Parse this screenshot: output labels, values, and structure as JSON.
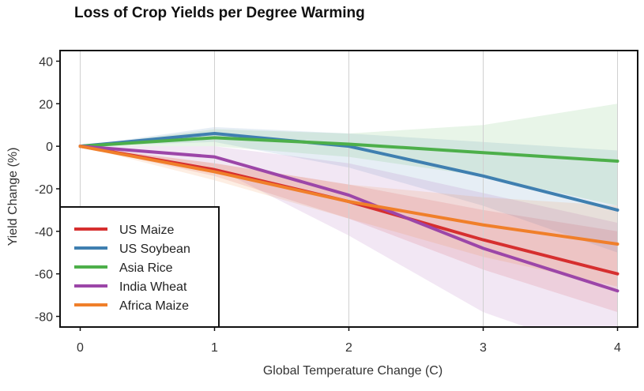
{
  "chart_data": {
    "type": "line",
    "title": "Loss of Crop Yields per Degree Warming",
    "xlabel": "Global Temperature Change (C)",
    "ylabel": "Yield Change (%)",
    "x": [
      0,
      1,
      2,
      3,
      4
    ],
    "xlim": [
      -0.15,
      4.15
    ],
    "ylim": [
      -85,
      45
    ],
    "xticks": [
      0,
      1,
      2,
      3,
      4
    ],
    "yticks": [
      40,
      20,
      0,
      -20,
      -40,
      -60,
      -80
    ],
    "grid": "vertical",
    "legend_position": "lower-left",
    "series": [
      {
        "name": "US Maize",
        "color": "#d62f2f",
        "values": [
          0,
          -11,
          -26,
          -44,
          -60
        ],
        "lower": [
          0,
          -14,
          -34,
          -58,
          -78
        ],
        "upper": [
          0,
          -8,
          -18,
          -30,
          -40
        ]
      },
      {
        "name": "US Soybean",
        "color": "#3f7fb0",
        "values": [
          0,
          6,
          0,
          -14,
          -30
        ],
        "lower": [
          0,
          2,
          -10,
          -28,
          -50
        ],
        "upper": [
          0,
          9,
          6,
          2,
          -2
        ]
      },
      {
        "name": "Asia Rice",
        "color": "#4daf4a",
        "values": [
          0,
          4,
          1,
          -3,
          -7
        ],
        "lower": [
          0,
          0,
          -5,
          -14,
          -28
        ],
        "upper": [
          0,
          8,
          6,
          10,
          20
        ]
      },
      {
        "name": "India Wheat",
        "color": "#9c46a8",
        "values": [
          0,
          -5,
          -23,
          -48,
          -68
        ],
        "lower": [
          0,
          -10,
          -42,
          -78,
          -100
        ],
        "upper": [
          0,
          0,
          -8,
          -22,
          -36
        ]
      },
      {
        "name": "Africa Maize",
        "color": "#f07f2a",
        "values": [
          0,
          -12,
          -26,
          -37,
          -46
        ],
        "lower": [
          0,
          -16,
          -34,
          -52,
          -66
        ],
        "upper": [
          0,
          -8,
          -18,
          -24,
          -28
        ]
      }
    ]
  }
}
